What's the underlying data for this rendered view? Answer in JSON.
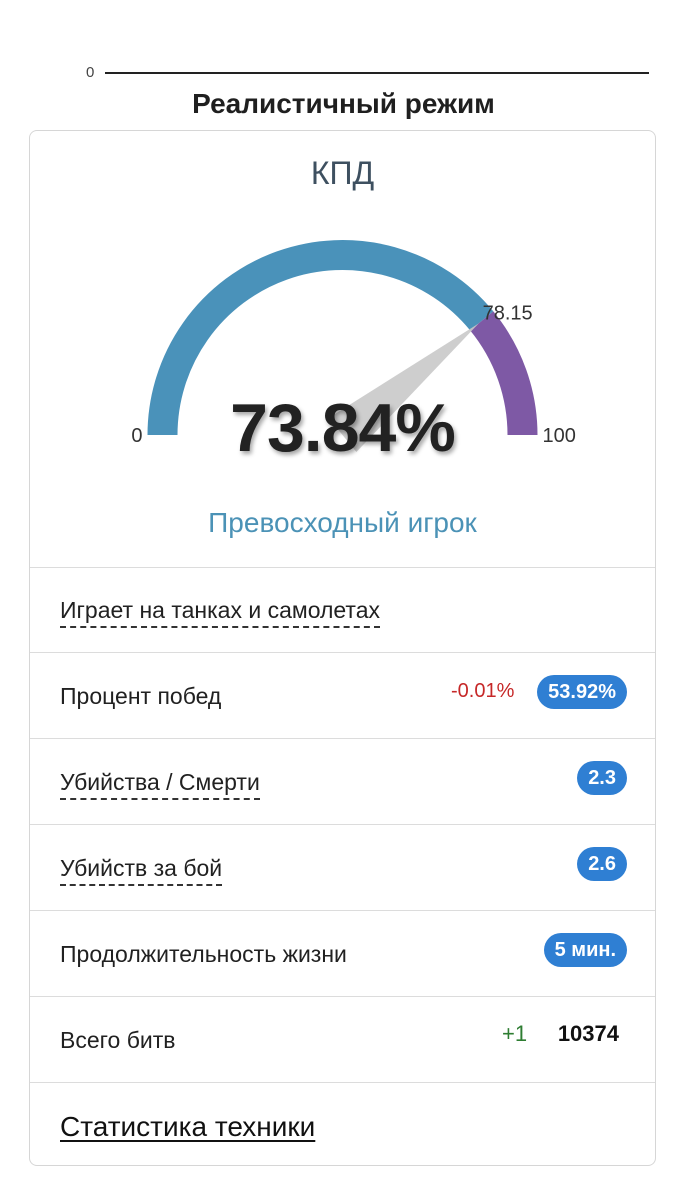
{
  "header": {
    "scale_zero": "0",
    "mode_title": "Реалистичный режим"
  },
  "gauge": {
    "title": "КПД",
    "min_label": "0",
    "max_label": "100",
    "value_text": "73.84%",
    "value": 73.84,
    "threshold_label": "78.15",
    "threshold": 78.15,
    "min": 0,
    "max": 100,
    "rating": "Превосходный игрок",
    "colors": {
      "primary_band": "#4a92ba",
      "upper_band": "#7e59a5",
      "needle": "#c9c9c9"
    }
  },
  "stats": {
    "vehicles_mode": "Играет на танках и самолетах",
    "win_rate": {
      "label": "Процент побед",
      "delta": "-0.01%",
      "value": "53.92%"
    },
    "kd": {
      "label": "Убийства / Смерти",
      "value": "2.3"
    },
    "kills_per_battle": {
      "label": "Убийств за бой",
      "value": "2.6"
    },
    "lifespan": {
      "label": "Продолжительность жизни",
      "value": "5 мин."
    },
    "battles": {
      "label": "Всего битв",
      "delta": "+1",
      "value": "10374"
    }
  },
  "footer": {
    "vehicle_stats_link": "Статистика техники"
  }
}
